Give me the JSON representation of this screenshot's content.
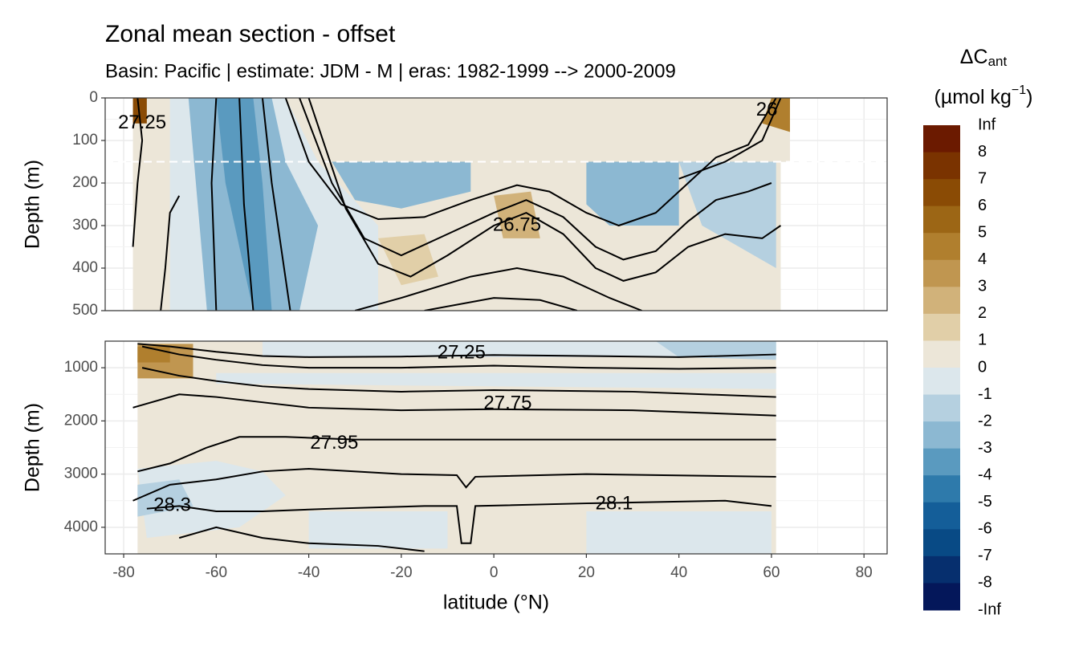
{
  "chart_data": {
    "type": "contour",
    "title": "Zonal mean section - offset",
    "subtitle": "Basin: Pacific | estimate: JDM - M | eras: 1982-1999 --> 2000-2009",
    "xlabel": "latitude (°N)",
    "xlim": [
      -84,
      85
    ],
    "xticks": [
      -80,
      -60,
      -40,
      -20,
      0,
      20,
      40,
      60,
      80
    ],
    "grid": true,
    "panels": [
      {
        "ylabel": "Depth (m)",
        "ylim": [
          0,
          500
        ],
        "yticks": [
          0,
          100,
          200,
          300,
          400,
          500
        ],
        "hline": 150,
        "regions": [
          {
            "color": "#ece6d8",
            "x": [
              -78,
              64,
              64,
              62,
              62,
              -78
            ],
            "y": [
              0,
              0,
              150,
              150,
              500,
              500
            ]
          },
          {
            "color": "#dce7ec",
            "x": [
              -70,
              -45,
              -38,
              -25,
              -25,
              -48,
              -70
            ],
            "y": [
              0,
              0,
              150,
              300,
              500,
              500,
              500
            ]
          },
          {
            "color": "#8cb8d2",
            "x": [
              -66,
              -48,
              -45,
              -38,
              -42,
              -62
            ],
            "y": [
              0,
              0,
              150,
              300,
              500,
              500
            ]
          },
          {
            "color": "#5a9abf",
            "x": [
              -60,
              -52,
              -50,
              -48,
              -52,
              -58
            ],
            "y": [
              0,
              0,
              200,
              500,
              500,
              200
            ]
          },
          {
            "color": "#8cb8d2",
            "x": [
              -35,
              -5,
              -5,
              -20,
              -30
            ],
            "y": [
              150,
              150,
              220,
              260,
              240
            ]
          },
          {
            "color": "#8cb8d2",
            "x": [
              20,
              40,
              40,
              25,
              20
            ],
            "y": [
              150,
              150,
              300,
              300,
              250
            ]
          },
          {
            "color": "#b5d0e0",
            "x": [
              40,
              61,
              61,
              45
            ],
            "y": [
              150,
              150,
              400,
              300
            ]
          },
          {
            "color": "#8a4b05",
            "x": [
              -78,
              -75,
              -75,
              -78
            ],
            "y": [
              0,
              0,
              60,
              60
            ]
          },
          {
            "color": "#b07f2e",
            "x": [
              60,
              64,
              64,
              58
            ],
            "y": [
              0,
              0,
              80,
              60
            ]
          },
          {
            "color": "#d1b27a",
            "x": [
              0,
              8,
              10,
              2
            ],
            "y": [
              230,
              220,
              330,
              330
            ]
          },
          {
            "color": "#e1cfa8",
            "x": [
              -25,
              -15,
              -12,
              -20
            ],
            "y": [
              330,
              320,
              420,
              440
            ]
          }
        ],
        "contours": [
          {
            "x": [
              -45,
              -40,
              -33,
              -25,
              -15,
              -5,
              5,
              12,
              20,
              27,
              35,
              42,
              48,
              55,
              61
            ],
            "y": [
              0,
              150,
              250,
              285,
              280,
              240,
              205,
              220,
              270,
              300,
              270,
              200,
              140,
              110,
              0
            ]
          },
          {
            "x": [
              -42,
              -35,
              -28,
              -20,
              -10,
              0,
              7,
              15,
              22,
              28,
              35,
              42,
              48,
              55,
              60
            ],
            "y": [
              0,
              200,
              330,
              370,
              320,
              270,
              240,
              280,
              350,
              380,
              360,
              290,
              240,
              220,
              200
            ]
          },
          {
            "x": [
              -40,
              -32,
              -25,
              -18,
              -10,
              0,
              7,
              15,
              22,
              28,
              35,
              42,
              50,
              58,
              62
            ],
            "y": [
              0,
              260,
              390,
              420,
              370,
              300,
              270,
              320,
              400,
              430,
              410,
              350,
              320,
              330,
              300
            ]
          },
          {
            "x": [
              -30,
              -20,
              -5,
              5,
              15,
              25,
              32
            ],
            "y": [
              500,
              470,
              420,
              400,
              420,
              470,
              500
            ]
          },
          {
            "x": [
              -15,
              0,
              10,
              18
            ],
            "y": [
              500,
              470,
              475,
              500
            ]
          },
          {
            "x": [
              -60,
              -61,
              -60
            ],
            "y": [
              0,
              200,
              500
            ]
          },
          {
            "x": [
              -55,
              -54,
              -52
            ],
            "y": [
              0,
              250,
              500
            ]
          },
          {
            "x": [
              -50,
              -48,
              -44
            ],
            "y": [
              0,
              200,
              500
            ]
          },
          {
            "x": [
              -77,
              -76,
              -77,
              -78
            ],
            "y": [
              0,
              100,
              200,
              350
            ]
          },
          {
            "x": [
              -72,
              -71,
              -70,
              -68
            ],
            "y": [
              500,
              400,
              270,
              230
            ]
          },
          {
            "x": [
              62,
              58,
              50,
              40
            ],
            "y": [
              0,
              100,
              150,
              190
            ]
          }
        ],
        "labels": [
          {
            "text": "27.25",
            "x": -76,
            "y": 60
          },
          {
            "text": "26.75",
            "x": 5,
            "y": 300
          },
          {
            "text": "26",
            "x": 59,
            "y": 30
          }
        ]
      },
      {
        "ylabel": "Depth (m)",
        "ylim": [
          4500,
          500
        ],
        "yticks": [
          1000,
          2000,
          3000,
          4000
        ],
        "regions": [
          {
            "color": "#ece6d8",
            "x": [
              -77,
              61,
              61,
              -77
            ],
            "y": [
              500,
              500,
              4500,
              4500
            ]
          },
          {
            "color": "#dce7ec",
            "x": [
              -60,
              61,
              61,
              -60
            ],
            "y": [
              1100,
              1100,
              1400,
              1300
            ]
          },
          {
            "color": "#dce7ec",
            "x": [
              -50,
              61,
              61,
              -50
            ],
            "y": [
              500,
              500,
              800,
              800
            ]
          },
          {
            "color": "#b5d0e0",
            "x": [
              35,
              61,
              61,
              40
            ],
            "y": [
              500,
              500,
              850,
              800
            ]
          },
          {
            "color": "#c09650",
            "x": [
              -77,
              -65,
              -65,
              -77
            ],
            "y": [
              550,
              550,
              1200,
              1200
            ]
          },
          {
            "color": "#b07f2e",
            "x": [
              -77,
              -70,
              -70,
              -77
            ],
            "y": [
              600,
              600,
              900,
              900
            ]
          },
          {
            "color": "#dce7ec",
            "x": [
              -77,
              -60,
              -50,
              -45,
              -55,
              -75
            ],
            "y": [
              2900,
              2750,
              2950,
              3400,
              4000,
              4200
            ]
          },
          {
            "color": "#b5d0e0",
            "x": [
              -77,
              -68,
              -65,
              -77
            ],
            "y": [
              3200,
              3100,
              3600,
              3800
            ]
          },
          {
            "color": "#dce7ec",
            "x": [
              -40,
              -10,
              -10,
              -40
            ],
            "y": [
              3700,
              3700,
              4400,
              4400
            ]
          },
          {
            "color": "#dce7ec",
            "x": [
              20,
              60,
              60,
              20
            ],
            "y": [
              3700,
              3700,
              4500,
              4500
            ]
          }
        ],
        "contours": [
          {
            "x": [
              -77,
              -70,
              -60,
              -50,
              -40,
              -20,
              0,
              20,
              40,
              61
            ],
            "y": [
              550,
              600,
              700,
              780,
              800,
              790,
              760,
              780,
              800,
              750
            ]
          },
          {
            "x": [
              -76,
              -68,
              -60,
              -50,
              -40,
              -20,
              0,
              20,
              40,
              61
            ],
            "y": [
              600,
              750,
              850,
              950,
              1000,
              1000,
              960,
              1000,
              1020,
              1000
            ]
          },
          {
            "x": [
              -76,
              -68,
              -60,
              -50,
              -40,
              -20,
              0,
              30,
              61
            ],
            "y": [
              1000,
              1150,
              1250,
              1350,
              1400,
              1450,
              1420,
              1450,
              1550
            ]
          },
          {
            "x": [
              -78,
              -68,
              -60,
              -50,
              -40,
              -20,
              0,
              30,
              61
            ],
            "y": [
              1750,
              1500,
              1550,
              1650,
              1750,
              1800,
              1780,
              1800,
              1900
            ]
          },
          {
            "x": [
              -77,
              -70,
              -62,
              -55,
              -45,
              -30,
              0,
              30,
              61
            ],
            "y": [
              2950,
              2800,
              2500,
              2300,
              2300,
              2350,
              2350,
              2350,
              2350
            ]
          },
          {
            "x": [
              -78,
              -70,
              -60,
              -50,
              -40,
              -20,
              -8,
              -6,
              -4,
              20,
              61
            ],
            "y": [
              3500,
              3200,
              3100,
              2950,
              2900,
              3000,
              3020,
              3250,
              3050,
              3000,
              3050
            ]
          },
          {
            "x": [
              -75,
              -68,
              -60,
              -50,
              -35,
              -15,
              -8,
              -7,
              -5,
              -4,
              20,
              50,
              60
            ],
            "y": [
              3650,
              3600,
              3700,
              3700,
              3650,
              3600,
              3600,
              4300,
              4300,
              3600,
              3550,
              3500,
              3600
            ]
          },
          {
            "x": [
              -68,
              -60,
              -50,
              -40,
              -25,
              -15
            ],
            "y": [
              4200,
              4000,
              4200,
              4300,
              4350,
              4450
            ]
          }
        ],
        "labels": [
          {
            "text": "27.25",
            "x": -7,
            "y": 726
          },
          {
            "text": "27.75",
            "x": 3,
            "y": 1676
          },
          {
            "text": "27.95",
            "x": -34.5,
            "y": 2430
          },
          {
            "text": "28.3",
            "x": -69.5,
            "y": 3600
          },
          {
            "text": "28.1",
            "x": 26,
            "y": 3570
          }
        ]
      }
    ],
    "legend": {
      "title": {
        "main": "ΔC",
        "sub": "ant",
        "unit": "(µmol kg",
        "sup": "−1",
        "close": ")"
      },
      "labels": [
        "Inf",
        8,
        7,
        6,
        5,
        4,
        3,
        2,
        1,
        0,
        -1,
        -2,
        -3,
        -4,
        -5,
        -6,
        -7,
        -8,
        "-Inf"
      ],
      "colors": [
        "#6b1a00",
        "#7a3300",
        "#8a4b05",
        "#9c6615",
        "#b07f2e",
        "#c09650",
        "#d1b27a",
        "#e1cfa8",
        "#ece6d8",
        "#dce7ec",
        "#b5d0e0",
        "#8cb8d2",
        "#5a9abf",
        "#2e7aab",
        "#145e99",
        "#084a85",
        "#062f6e",
        "#04175a"
      ]
    }
  }
}
